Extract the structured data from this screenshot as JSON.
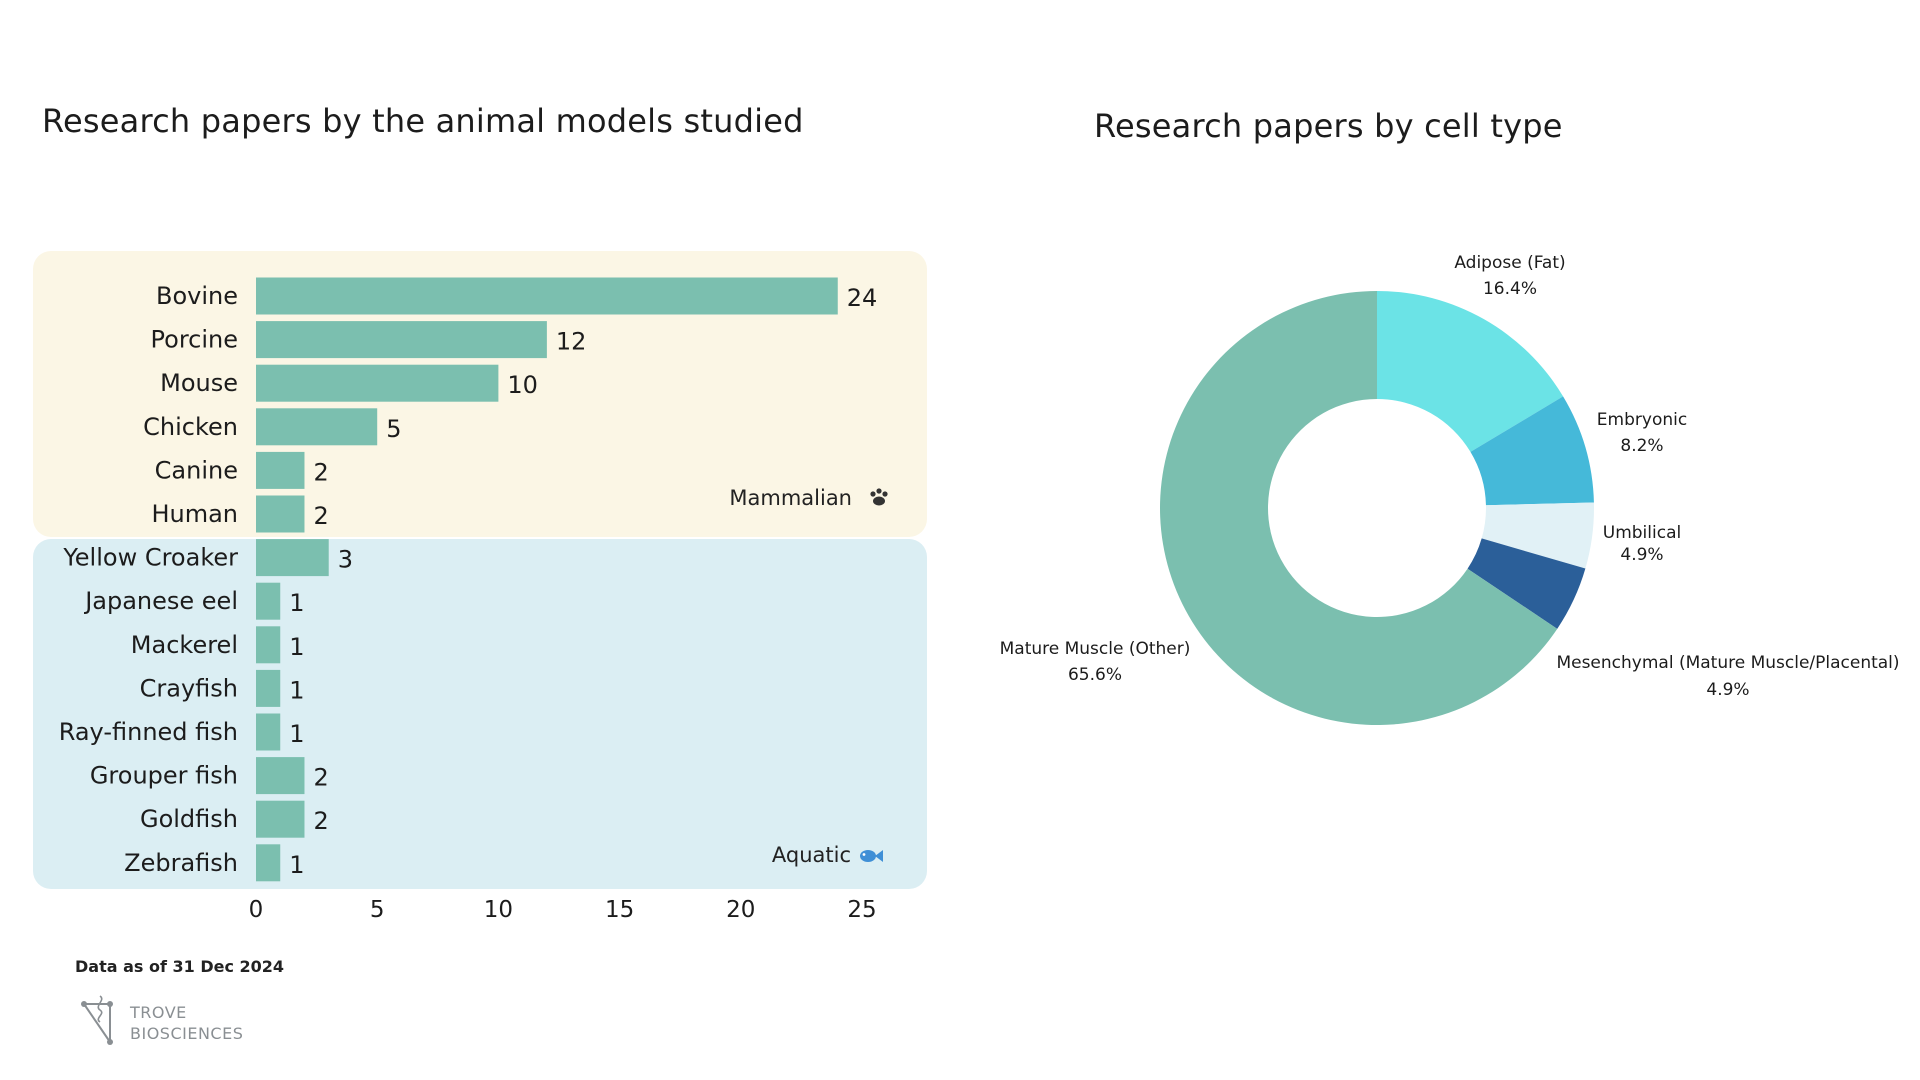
{
  "footnote": "Data as of 31 Dec 2024",
  "logo": {
    "line1": "TROVE",
    "line2": "BIOSCIENCES"
  },
  "colors": {
    "bar": "#7bbfaf",
    "mammalian_bg": "#fbf6e5",
    "aquatic_bg": "#dbeef3"
  },
  "chart_data": [
    {
      "type": "bar",
      "orientation": "horizontal",
      "title": "Research papers by the animal models studied",
      "categories": [
        "Bovine",
        "Porcine",
        "Mouse",
        "Chicken",
        "Canine",
        "Human",
        "Yellow Croaker",
        "Japanese eel",
        "Mackerel",
        "Crayfish",
        "Ray-finned fish",
        "Grouper fish",
        "Goldfish",
        "Zebrafish"
      ],
      "values": [
        24,
        12,
        10,
        5,
        2,
        2,
        3,
        1,
        1,
        1,
        1,
        2,
        2,
        1
      ],
      "groups": [
        {
          "name": "Mammalian",
          "icon": "paw-icon",
          "from": 0,
          "to": 5
        },
        {
          "name": "Aquatic",
          "icon": "fish-icon",
          "from": 6,
          "to": 13
        }
      ],
      "xticks": [
        0,
        5,
        10,
        15,
        20,
        25
      ],
      "xlim": [
        0,
        25
      ],
      "grid": false,
      "data_labels": true
    },
    {
      "type": "pie",
      "donut": true,
      "title": "Research papers by cell type",
      "slices": [
        {
          "label": "Adipose (Fat)",
          "value": 16.4,
          "pct": "16.4%",
          "color": "#6be3e6"
        },
        {
          "label": "Embryonic",
          "value": 8.2,
          "pct": "8.2%",
          "color": "#45b9d9"
        },
        {
          "label": "Umbilical",
          "value": 4.9,
          "pct": "4.9%",
          "color": "#e1f1f6"
        },
        {
          "label": "Mesenchymal (Mature Muscle/Placental)",
          "value": 4.9,
          "pct": "4.9%",
          "color": "#2b5f99"
        },
        {
          "label": "Mature Muscle (Other)",
          "value": 65.6,
          "pct": "65.6%",
          "color": "#7bbfaf"
        }
      ],
      "start": "12 o'clock",
      "direction": "clockwise"
    }
  ]
}
